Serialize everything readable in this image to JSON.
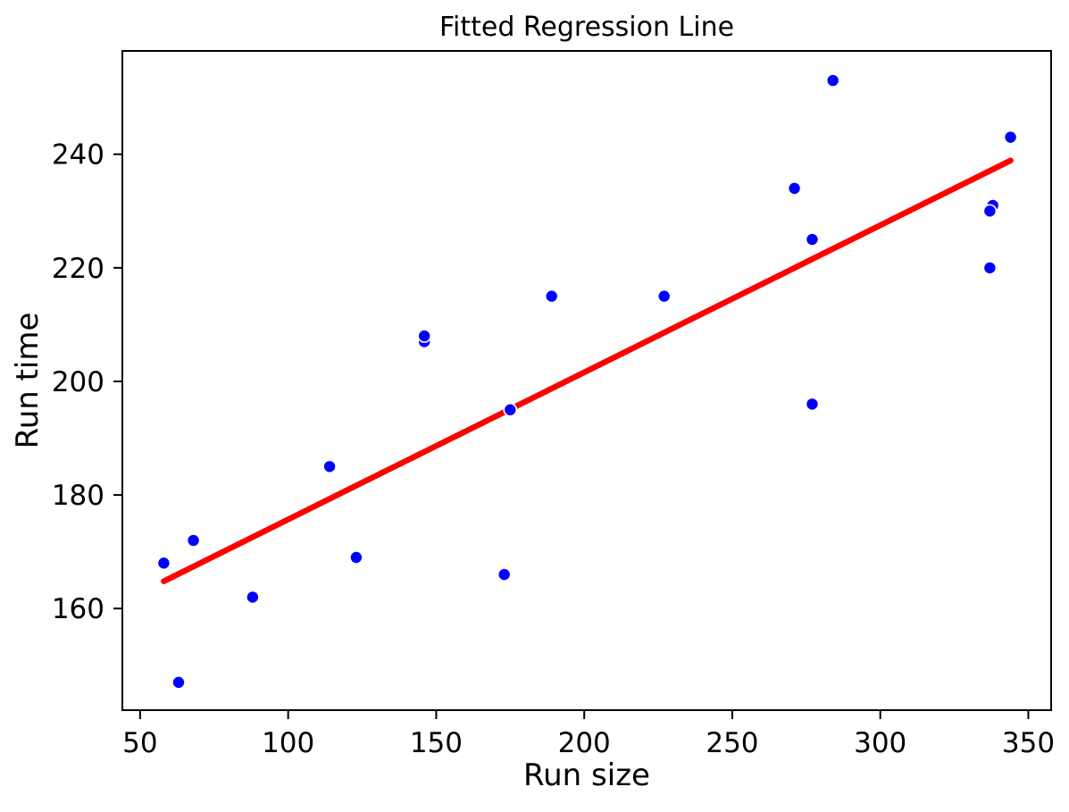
{
  "figure": {
    "background": "#ffffff",
    "axis_color": "#000000"
  },
  "chart_data": {
    "type": "scatter",
    "title": "Fitted Regression Line",
    "xlabel": "Run size",
    "ylabel": "Run time",
    "xlim": [
      44.0,
      357.7
    ],
    "ylim": [
      142.1,
      258.2
    ],
    "xticks": [
      50,
      100,
      150,
      200,
      250,
      300,
      350
    ],
    "yticks": [
      160,
      180,
      200,
      220,
      240
    ],
    "grid": false,
    "legend": null,
    "series": [
      {
        "name": "observations",
        "type": "scatter",
        "color": "#0000ff",
        "edge_color": "#ffffff",
        "marker_radius": 7,
        "points": [
          [
            175,
            195
          ],
          [
            189,
            215
          ],
          [
            344,
            243
          ],
          [
            88,
            162
          ],
          [
            114,
            185
          ],
          [
            338,
            231
          ],
          [
            271,
            234
          ],
          [
            173,
            166
          ],
          [
            284,
            253
          ],
          [
            277,
            196
          ],
          [
            337,
            220
          ],
          [
            58,
            168
          ],
          [
            146,
            207
          ],
          [
            277,
            225
          ],
          [
            123,
            169
          ],
          [
            227,
            215
          ],
          [
            63,
            147
          ],
          [
            337,
            230
          ],
          [
            146,
            208
          ],
          [
            68,
            172
          ]
        ]
      },
      {
        "name": "fitted-regression-line",
        "type": "line",
        "color": "#ff0000",
        "stroke_width": 6.5,
        "x": [
          58,
          344
        ],
        "y": [
          164.8,
          238.9
        ]
      }
    ]
  }
}
